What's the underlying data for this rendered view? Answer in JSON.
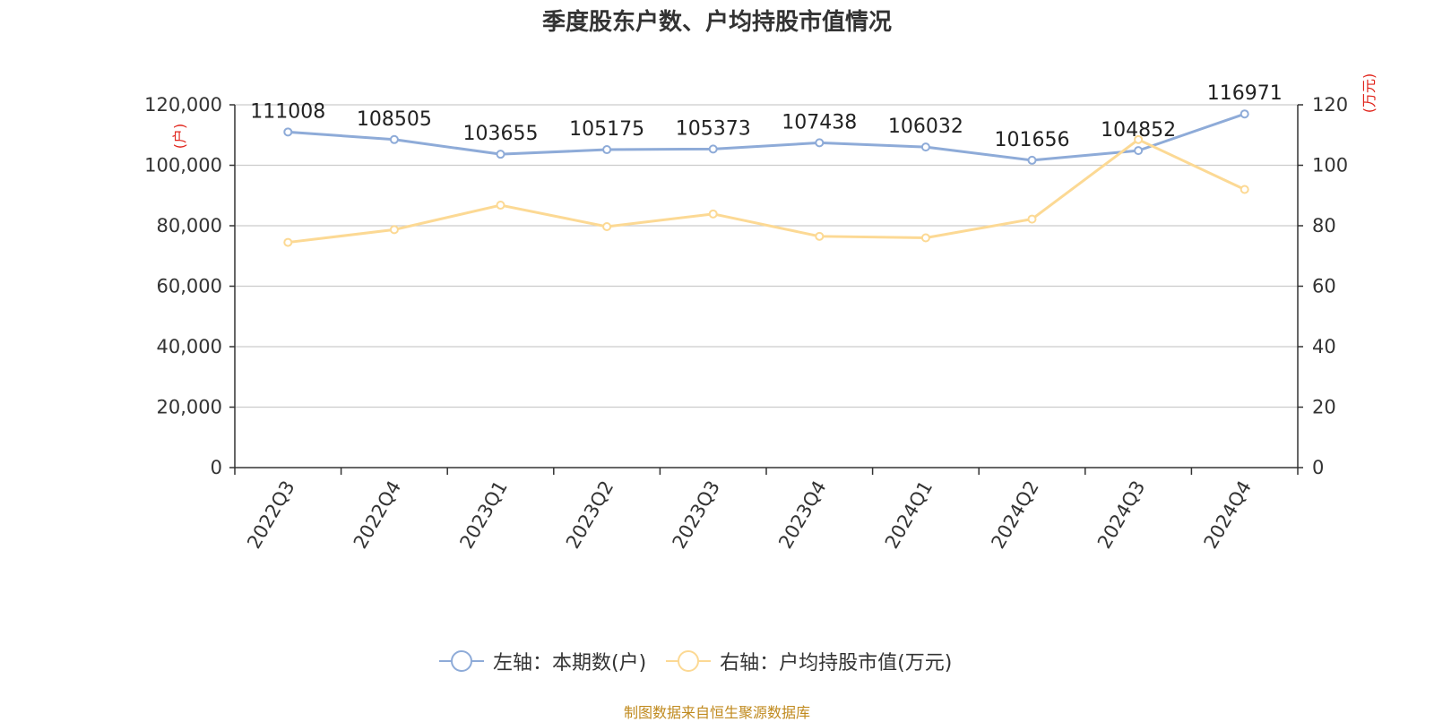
{
  "chart_data": {
    "type": "line",
    "title": "季度股东户数、户均持股市值情况",
    "categories": [
      "2022Q3",
      "2022Q4",
      "2023Q1",
      "2023Q2",
      "2023Q3",
      "2023Q4",
      "2024Q1",
      "2024Q2",
      "2024Q3",
      "2024Q4"
    ],
    "series": [
      {
        "name": "左轴：本期数(户)",
        "axis": "left",
        "color": "#8eabd8",
        "values": [
          111008,
          108505,
          103655,
          105175,
          105373,
          107438,
          106032,
          101656,
          104852,
          116971
        ],
        "data_labels": [
          "111008",
          "108505",
          "103655",
          "105175",
          "105373",
          "107438",
          "106032",
          "101656",
          "104852",
          "116971"
        ]
      },
      {
        "name": "右轴：户均持股市值(万元)",
        "axis": "right",
        "color": "#fcd994",
        "values": [
          74.5,
          78.7,
          86.8,
          79.7,
          83.9,
          76.5,
          76.0,
          82.2,
          108.5,
          92.0
        ]
      }
    ],
    "y_left": {
      "label": "(户)",
      "min": 0,
      "max": 120000,
      "ticks": [
        "0",
        "20,000",
        "40,000",
        "60,000",
        "80,000",
        "100,000",
        "120,000"
      ]
    },
    "y_right": {
      "label": "(万元)",
      "min": 0,
      "max": 120,
      "ticks": [
        "0",
        "20",
        "40",
        "60",
        "80",
        "100",
        "120"
      ]
    },
    "grid": true,
    "legend_position": "bottom-center"
  },
  "footer": {
    "source": "制图数据来自恒生聚源数据库"
  }
}
